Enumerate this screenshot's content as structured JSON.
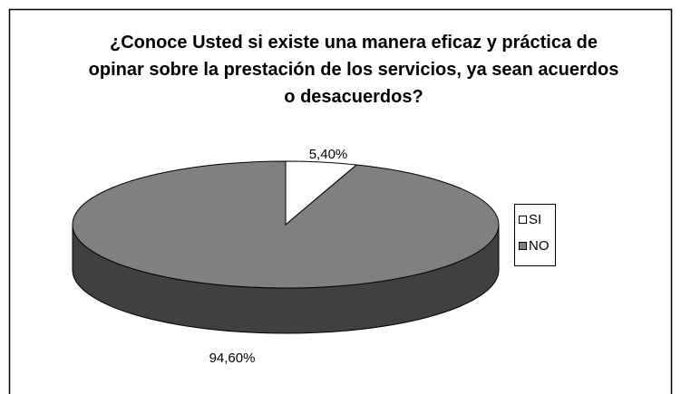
{
  "chart_data": {
    "type": "pie",
    "title": "¿Conoce Usted si existe una manera eficaz y práctica de opinar sobre la prestación de los servicios, ya sean acuerdos o desacuerdos?",
    "categories": [
      "SI",
      "NO"
    ],
    "values": [
      5.4,
      94.6
    ],
    "value_labels": [
      "5,40%",
      "94,60%"
    ],
    "colors": [
      "#ffffff",
      "#808080"
    ],
    "legend": "right"
  }
}
